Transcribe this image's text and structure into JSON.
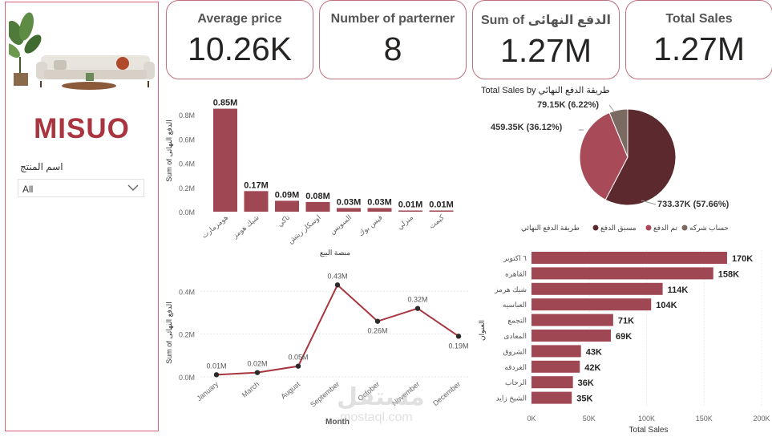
{
  "brand": {
    "name": "MISUO"
  },
  "slicer": {
    "title": "اسم المنتج",
    "value": "All"
  },
  "cards": [
    {
      "title": "Average price",
      "value": "10.26K"
    },
    {
      "title": "Number of parterner",
      "value": "8"
    },
    {
      "title": "Sum of الدفع النهائى",
      "value": "1.27M"
    },
    {
      "title": "Total Sales",
      "value": "1.27M"
    }
  ],
  "colors": {
    "accent": "#a8353f",
    "bar": "#a04754",
    "line": "#a8353f",
    "pie_dark": "#5c2a2e",
    "pie_mid": "#a84a57",
    "pie_light": "#7a6a62"
  },
  "chart_data": [
    {
      "type": "bar",
      "ylabel": "Sum of الدفع النهائى",
      "xlabel": "منصة البيع",
      "categories": [
        "هومزمارت",
        "شيك هومز",
        "تاكي",
        "اوسكار ريتش",
        "السويس",
        "فيس بوك",
        "منزلي",
        "كيمت"
      ],
      "values": [
        0.85,
        0.17,
        0.09,
        0.08,
        0.03,
        0.03,
        0.01,
        0.01
      ],
      "labels": [
        "0.85M",
        "0.17M",
        "0.09M",
        "0.08M",
        "0.03M",
        "0.03M",
        "0.01M",
        "0.01M"
      ],
      "yticks": [
        "0.0M",
        "0.2M",
        "0.4M",
        "0.6M",
        "0.8M"
      ],
      "ylim": [
        0,
        0.9
      ]
    },
    {
      "type": "line",
      "ylabel": "Sum of الدفع النهائى",
      "xlabel": "Month",
      "categories": [
        "January",
        "March",
        "August",
        "September",
        "October",
        "November",
        "December"
      ],
      "values": [
        0.01,
        0.02,
        0.05,
        0.43,
        0.26,
        0.32,
        0.19
      ],
      "labels": [
        "0.01M",
        "0.02M",
        "0.05M",
        "0.43M",
        "0.26M",
        "0.32M",
        "0.19M"
      ],
      "yticks": [
        "0.0M",
        "0.2M",
        "0.4M"
      ],
      "ylim": [
        0,
        0.48
      ]
    },
    {
      "type": "pie",
      "title": "Total Sales by طريقة الدفع النهائي",
      "legend_title": "طريقة الدفع النهائي",
      "slices": [
        {
          "name": "مسبق الدفع",
          "value": 733.37,
          "label": "733.37K (57.66%)",
          "color": "#5c2a2e"
        },
        {
          "name": "تم الدفع",
          "value": 459.35,
          "label": "459.35K (36.12%)",
          "color": "#a84a57"
        },
        {
          "name": "حساب شركه",
          "value": 79.15,
          "label": "79.15K (6.22%)",
          "color": "#7a6a62"
        }
      ]
    },
    {
      "type": "bar",
      "orientation": "horizontal",
      "xlabel": "Total Sales",
      "ylabel": "العنوان",
      "categories": [
        "٦ اكتوبر",
        "القاهره",
        "شيك هرمز",
        "العباسيه",
        "التجمع",
        "المعادى",
        "الشروق",
        "الغردقه",
        "الرحاب",
        "الشيخ زايد"
      ],
      "values": [
        170,
        158,
        114,
        104,
        71,
        69,
        43,
        42,
        36,
        35
      ],
      "labels": [
        "170K",
        "158K",
        "114K",
        "104K",
        "71K",
        "69K",
        "43K",
        "42K",
        "36K",
        "35K"
      ],
      "xticks": [
        "0K",
        "50K",
        "100K",
        "150K",
        "200K"
      ],
      "xlim": [
        0,
        200
      ]
    }
  ],
  "watermark": {
    "text": "مستقل",
    "sub": "mostaql.com"
  }
}
